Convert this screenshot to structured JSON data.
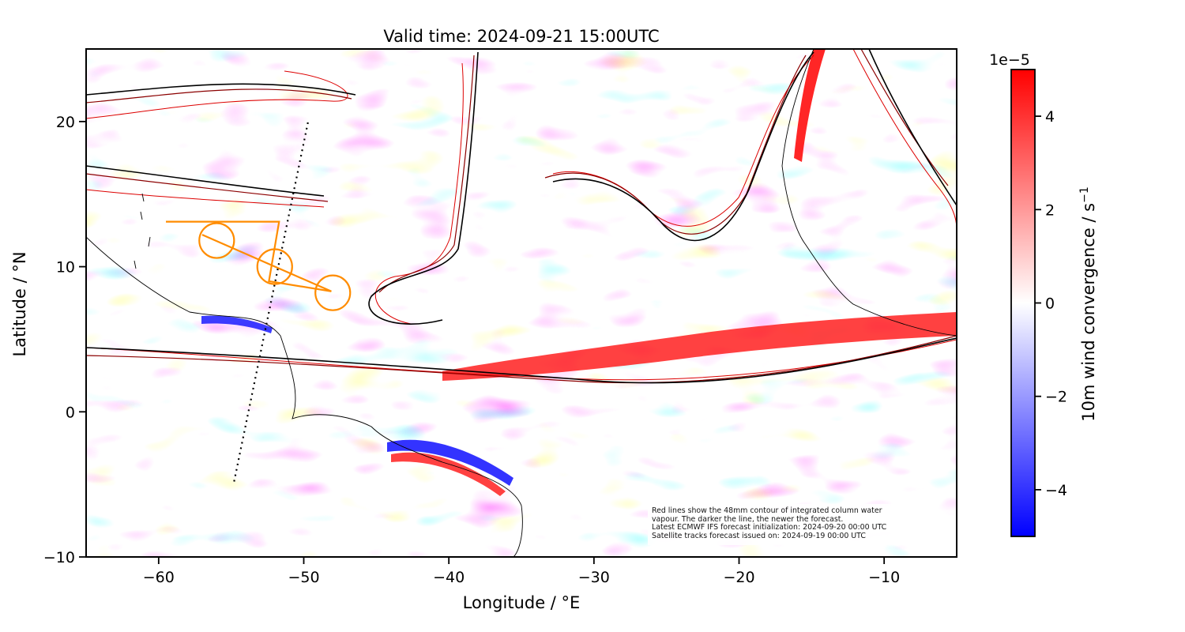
{
  "chart_data": {
    "type": "heatmap",
    "title": "Valid time: 2024-09-21 15:00UTC",
    "xlabel": "Longitude / °E",
    "ylabel": "Latitude / °N",
    "xlim": [
      -65,
      -5
    ],
    "ylim": [
      -10,
      25
    ],
    "x_ticks": [
      -60,
      -50,
      -40,
      -30,
      -20,
      -10
    ],
    "x_tick_labels": [
      "−60",
      "−50",
      "−40",
      "−30",
      "−20",
      "−10"
    ],
    "y_ticks": [
      -10,
      0,
      10,
      20
    ],
    "y_tick_labels": [
      "−10",
      "0",
      "10",
      "20"
    ],
    "colorbar": {
      "label": "10m wind convergence / s",
      "label_exponent": "−1",
      "scale_label": "1e−5",
      "range": [
        -5,
        5
      ],
      "ticks": [
        -4,
        -2,
        0,
        2,
        4
      ],
      "tick_labels": [
        "−4",
        "−2",
        "0",
        "2",
        "4"
      ],
      "colormap": "bwr"
    },
    "satellite_track": {
      "points": [
        [
          -54.8,
          -4.8
        ],
        [
          -49.7,
          20.0
        ]
      ],
      "style": "dotted"
    },
    "orange_markers": {
      "polygon": [
        [
          -59.5,
          13.1
        ],
        [
          -51.7,
          13.1
        ],
        [
          -52.4,
          9.0
        ],
        [
          -48.1,
          8.3
        ],
        [
          -57.0,
          12.2
        ]
      ],
      "circles": [
        [
          -56.0,
          11.8
        ],
        [
          -52.0,
          10.0
        ],
        [
          -48.0,
          8.2
        ]
      ],
      "circle_radius_deg": 1.2
    },
    "notes": [
      "Red lines show the 48mm contour of integrated column water",
      "vapour. The darker the line, the newer the forecast.",
      "Latest ECMWF IFS forecast initialization: 2024-09-20 00:00 UTC",
      "Satellite tracks forecast issued on: 2024-09-19 00:00 UTC"
    ]
  },
  "colors": {
    "convergence_positive": "#ff0000",
    "convergence_negative": "#0000ff",
    "contour_latest": "#000000",
    "contour_mid": "#8b0000",
    "contour_oldest": "#dd0000",
    "markers": "#ff8c00",
    "coastline": "#000000"
  }
}
